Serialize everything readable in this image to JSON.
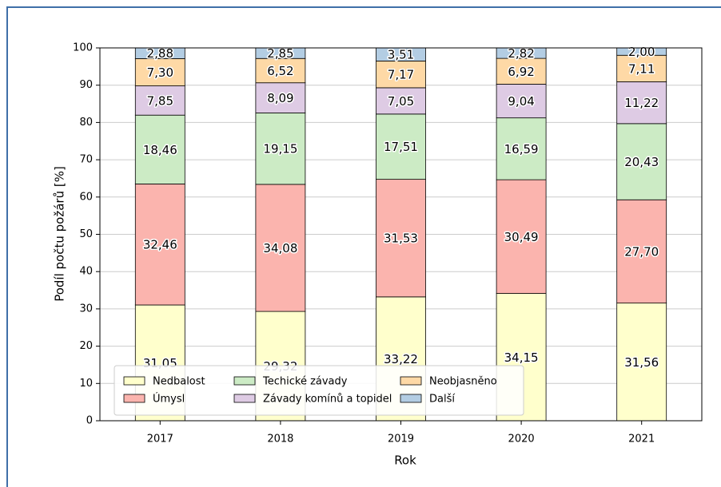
{
  "chart_data": {
    "type": "stacked_bar",
    "x_label": "Rok",
    "y_label": "Podíl počtu požárů [%]",
    "categories": [
      "2017",
      "2018",
      "2019",
      "2020",
      "2021"
    ],
    "series": [
      {
        "name": "Nedbalost",
        "color": "#ffffcc",
        "values": [
          31.05,
          29.32,
          33.22,
          34.15,
          31.56
        ],
        "value_labels": [
          "31,05",
          "29,32",
          "33,22",
          "34,15",
          "31,56"
        ]
      },
      {
        "name": "Úmysl",
        "color": "#fbb4ae",
        "values": [
          32.46,
          34.08,
          31.53,
          30.49,
          27.7
        ],
        "value_labels": [
          "32,46",
          "34,08",
          "31,53",
          "30,49",
          "27,70"
        ]
      },
      {
        "name": "Techické závady",
        "color": "#ccebc5",
        "values": [
          18.46,
          19.15,
          17.51,
          16.59,
          20.43
        ],
        "value_labels": [
          "18,46",
          "19,15",
          "17,51",
          "16,59",
          "20,43"
        ]
      },
      {
        "name": "Závady komínů a topidel",
        "color": "#decbe4",
        "values": [
          7.85,
          8.09,
          7.05,
          9.04,
          11.22
        ],
        "value_labels": [
          "7,85",
          "8,09",
          "7,05",
          "9,04",
          "11,22"
        ]
      },
      {
        "name": "Neobjasněno",
        "color": "#fed9a6",
        "values": [
          7.3,
          6.52,
          7.17,
          6.92,
          7.11
        ],
        "value_labels": [
          "7,30",
          "6,52",
          "7,17",
          "6,92",
          "7,11"
        ]
      },
      {
        "name": "Další",
        "color": "#b3cde3",
        "values": [
          2.88,
          2.85,
          3.51,
          2.82,
          2.0
        ],
        "value_labels": [
          "2,88",
          "2,85",
          "3,51",
          "2,82",
          "2,00"
        ]
      }
    ],
    "ylim": [
      0,
      100
    ],
    "yticks": [
      0,
      10,
      20,
      30,
      40,
      50,
      60,
      70,
      80,
      90,
      100
    ],
    "grid": true,
    "legend": "lower left"
  }
}
